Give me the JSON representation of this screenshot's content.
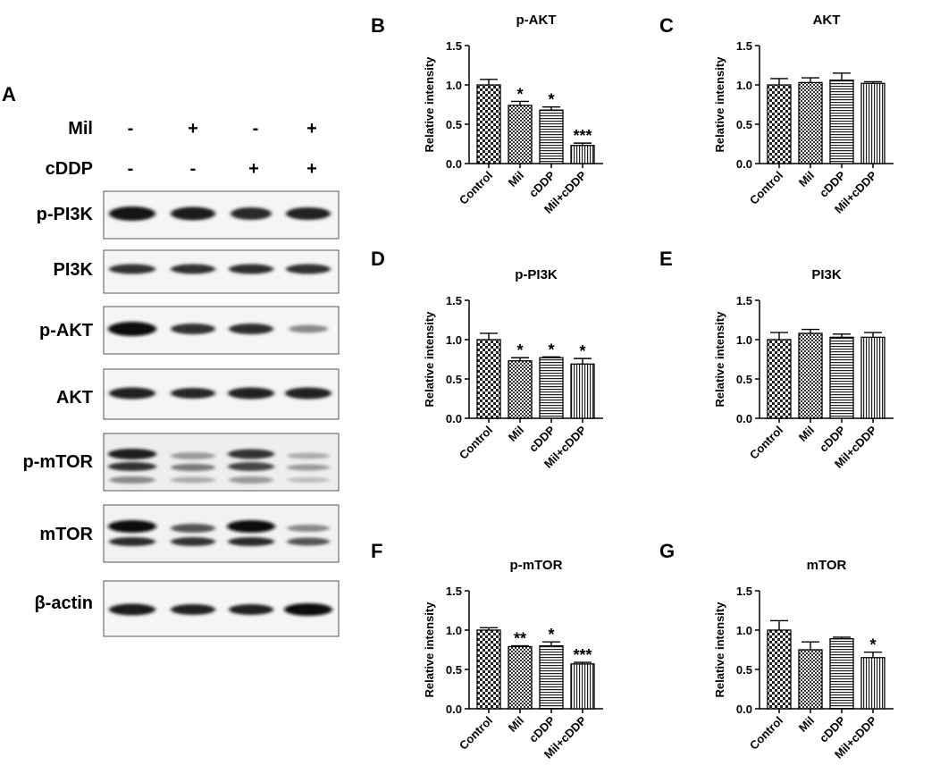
{
  "panel_a": {
    "letter": "A",
    "treatments": [
      {
        "label": "Mil",
        "signs": [
          "-",
          "+",
          "-",
          "+"
        ]
      },
      {
        "label": "cDDP",
        "signs": [
          "-",
          "-",
          "+",
          "+"
        ]
      }
    ],
    "blots": [
      {
        "label": "p-PI3K"
      },
      {
        "label": "PI3K"
      },
      {
        "label": "p-AKT"
      },
      {
        "label": "AKT"
      },
      {
        "label": "p-mTOR"
      },
      {
        "label": "mTOR"
      },
      {
        "label": "β-actin"
      }
    ]
  },
  "chart_data": [
    {
      "panel": "B",
      "type": "bar",
      "title": "p-AKT",
      "ylabel": "Relative intensity",
      "categories": [
        "Control",
        "Mil",
        "cDDP",
        "Mil+cDDP"
      ],
      "values": [
        1.0,
        0.74,
        0.68,
        0.23
      ],
      "errors": [
        0.07,
        0.05,
        0.04,
        0.03
      ],
      "significance": [
        "",
        "*",
        "*",
        "***"
      ],
      "ylim": [
        0,
        1.5
      ],
      "yticks": [
        "0.0",
        "0.5",
        "1.0",
        "1.5"
      ]
    },
    {
      "panel": "C",
      "type": "bar",
      "title": "AKT",
      "ylabel": "Relative intensity",
      "categories": [
        "Control",
        "Mil",
        "cDDP",
        "Mil+cDDP"
      ],
      "values": [
        1.0,
        1.03,
        1.06,
        1.02
      ],
      "errors": [
        0.08,
        0.06,
        0.09,
        0.02
      ],
      "significance": [
        "",
        "",
        "",
        ""
      ],
      "ylim": [
        0,
        1.5
      ],
      "yticks": [
        "0.0",
        "0.5",
        "1.0",
        "1.5"
      ]
    },
    {
      "panel": "D",
      "type": "bar",
      "title": "p-PI3K",
      "ylabel": "Relative intensity",
      "categories": [
        "Control",
        "Mil",
        "cDDP",
        "Mil+cDDP"
      ],
      "values": [
        1.0,
        0.73,
        0.77,
        0.69
      ],
      "errors": [
        0.08,
        0.04,
        0.01,
        0.07
      ],
      "significance": [
        "",
        "*",
        "*",
        "*"
      ],
      "ylim": [
        0,
        1.5
      ],
      "yticks": [
        "0.0",
        "0.5",
        "1.0",
        "1.5"
      ]
    },
    {
      "panel": "E",
      "type": "bar",
      "title": "PI3K",
      "ylabel": "Relative intensity",
      "categories": [
        "Control",
        "Mil",
        "cDDP",
        "Mil+cDDP"
      ],
      "values": [
        1.0,
        1.08,
        1.03,
        1.03
      ],
      "errors": [
        0.09,
        0.05,
        0.04,
        0.06
      ],
      "significance": [
        "",
        "",
        "",
        ""
      ],
      "ylim": [
        0,
        1.5
      ],
      "yticks": [
        "0.0",
        "0.5",
        "1.0",
        "1.5"
      ]
    },
    {
      "panel": "F",
      "type": "bar",
      "title": "p-mTOR",
      "ylabel": "Relative intensity",
      "categories": [
        "Control",
        "Mil",
        "cDDP",
        "Mil+cDDP"
      ],
      "values": [
        1.0,
        0.79,
        0.8,
        0.57
      ],
      "errors": [
        0.03,
        0.01,
        0.05,
        0.02
      ],
      "significance": [
        "",
        "**",
        "*",
        "***"
      ],
      "ylim": [
        0,
        1.5
      ],
      "yticks": [
        "0.0",
        "0.5",
        "1.0",
        "1.5"
      ]
    },
    {
      "panel": "G",
      "type": "bar",
      "title": "mTOR",
      "ylabel": "Relative intensity",
      "categories": [
        "Control",
        "Mil",
        "cDDP",
        "Mil+cDDP"
      ],
      "values": [
        1.0,
        0.75,
        0.89,
        0.65
      ],
      "errors": [
        0.12,
        0.1,
        0.02,
        0.07
      ],
      "significance": [
        "",
        "",
        "",
        "*"
      ],
      "ylim": [
        0,
        1.5
      ],
      "yticks": [
        "0.0",
        "0.5",
        "1.0",
        "1.5"
      ]
    }
  ]
}
